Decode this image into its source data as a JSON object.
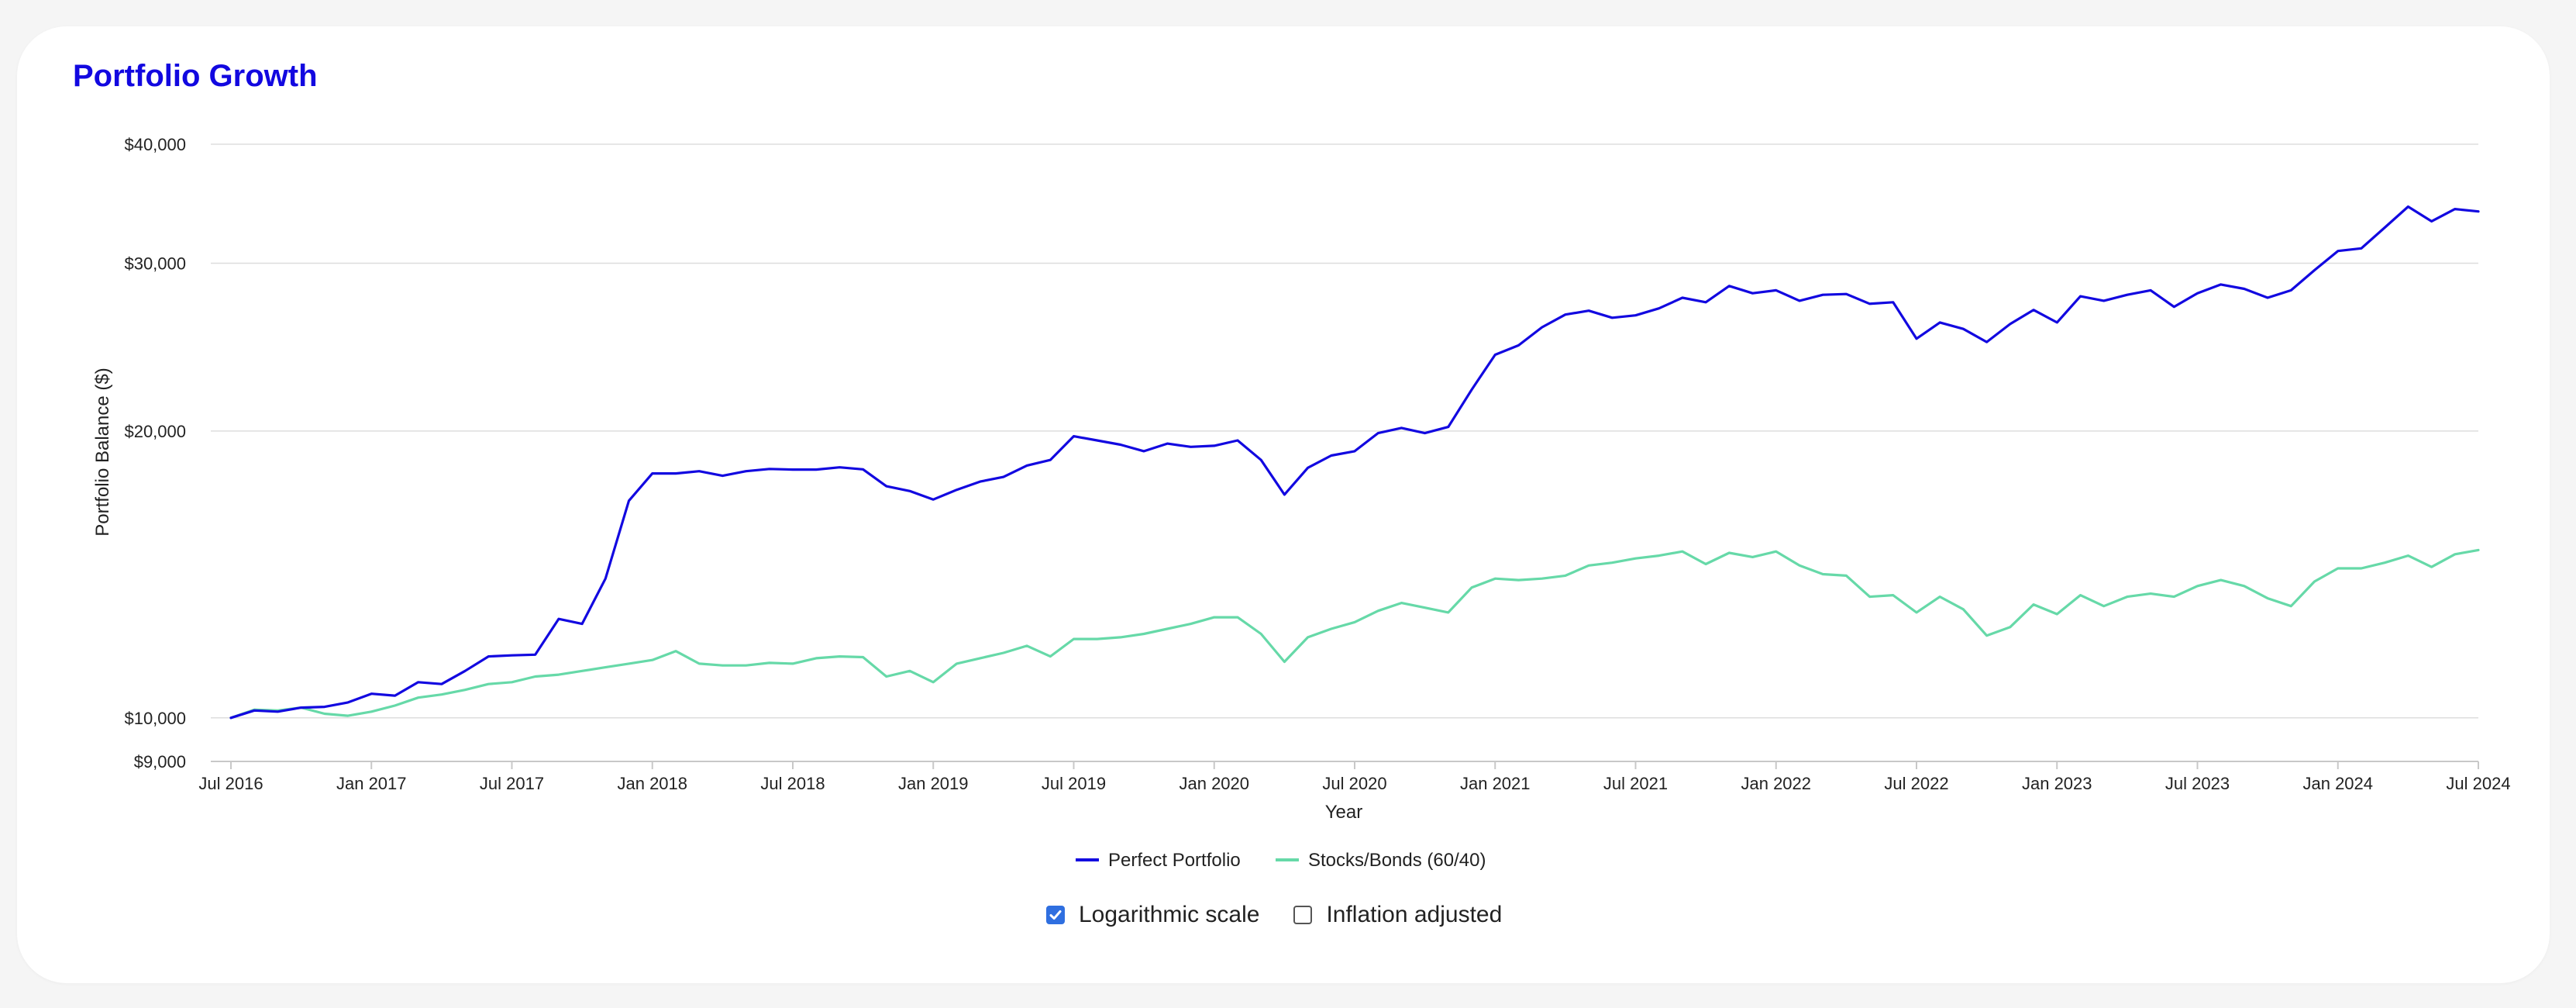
{
  "card": {
    "title": "Portfolio Growth"
  },
  "options": {
    "log_scale": {
      "label": "Logarithmic scale",
      "checked": true
    },
    "inflation": {
      "label": "Inflation adjusted",
      "checked": false
    },
    "check_color": "#2f6fe0"
  },
  "chart_data": {
    "type": "line",
    "xlabel": "Year",
    "ylabel": "Portfolio Balance ($)",
    "yscale": "log",
    "ylim": [
      9000,
      40000
    ],
    "xlim": [
      "2016-07",
      "2024-07"
    ],
    "grid": true,
    "legend": "bottom",
    "yticks": [
      {
        "value": 9000,
        "label": "$9,000"
      },
      {
        "value": 10000,
        "label": "$10,000"
      },
      {
        "value": 20000,
        "label": "$20,000"
      },
      {
        "value": 30000,
        "label": "$30,000"
      },
      {
        "value": 40000,
        "label": "$40,000"
      }
    ],
    "xticks": [
      {
        "date": "2016-07",
        "label": "Jul 2016"
      },
      {
        "date": "2017-01",
        "label": "Jan 2017"
      },
      {
        "date": "2017-07",
        "label": "Jul 2017"
      },
      {
        "date": "2018-01",
        "label": "Jan 2018"
      },
      {
        "date": "2018-07",
        "label": "Jul 2018"
      },
      {
        "date": "2019-01",
        "label": "Jan 2019"
      },
      {
        "date": "2019-07",
        "label": "Jul 2019"
      },
      {
        "date": "2020-01",
        "label": "Jan 2020"
      },
      {
        "date": "2020-07",
        "label": "Jul 2020"
      },
      {
        "date": "2021-01",
        "label": "Jan 2021"
      },
      {
        "date": "2021-07",
        "label": "Jul 2021"
      },
      {
        "date": "2022-01",
        "label": "Jan 2022"
      },
      {
        "date": "2022-07",
        "label": "Jul 2022"
      },
      {
        "date": "2023-01",
        "label": "Jan 2023"
      },
      {
        "date": "2023-07",
        "label": "Jul 2023"
      },
      {
        "date": "2024-01",
        "label": "Jan 2024"
      },
      {
        "date": "2024-07",
        "label": "Jul 2024"
      }
    ],
    "series": [
      {
        "name": "Perfect Portfolio",
        "color": "#1208e0",
        "x": [
          "2016-07",
          "2016-08",
          "2016-09",
          "2016-10",
          "2016-11",
          "2016-12",
          "2017-01",
          "2017-02",
          "2017-03",
          "2017-04",
          "2017-05",
          "2017-06",
          "2017-07",
          "2017-08",
          "2017-09",
          "2017-10",
          "2017-11",
          "2017-12",
          "2018-01",
          "2018-02",
          "2018-03",
          "2018-04",
          "2018-05",
          "2018-06",
          "2018-07",
          "2018-08",
          "2018-09",
          "2018-10",
          "2018-11",
          "2018-12",
          "2019-01",
          "2019-02",
          "2019-03",
          "2019-04",
          "2019-05",
          "2019-06",
          "2019-07",
          "2019-08",
          "2019-09",
          "2019-10",
          "2019-11",
          "2019-12",
          "2020-01",
          "2020-02",
          "2020-03",
          "2020-04",
          "2020-05",
          "2020-06",
          "2020-07",
          "2020-08",
          "2020-09",
          "2020-10",
          "2020-11",
          "2020-12",
          "2021-01",
          "2021-02",
          "2021-03",
          "2021-04",
          "2021-05",
          "2021-06",
          "2021-07",
          "2021-08",
          "2021-09",
          "2021-10",
          "2021-11",
          "2021-12",
          "2022-01",
          "2022-02",
          "2022-03",
          "2022-04",
          "2022-05",
          "2022-06",
          "2022-07",
          "2022-08",
          "2022-09",
          "2022-10",
          "2022-11",
          "2022-12",
          "2023-01",
          "2023-02",
          "2023-03",
          "2023-04",
          "2023-05",
          "2023-06",
          "2023-07",
          "2023-08",
          "2023-09",
          "2023-10",
          "2023-11",
          "2023-12",
          "2024-01",
          "2024-02",
          "2024-03",
          "2024-04",
          "2024-05",
          "2024-06",
          "2024-07"
        ],
        "values": [
          10000,
          10180,
          10150,
          10250,
          10270,
          10380,
          10600,
          10550,
          10900,
          10850,
          11200,
          11600,
          11630,
          11650,
          12700,
          12550,
          14000,
          16900,
          18050,
          18050,
          18150,
          17950,
          18150,
          18250,
          18220,
          18220,
          18320,
          18230,
          17500,
          17300,
          16950,
          17350,
          17700,
          17900,
          18400,
          18650,
          19750,
          19550,
          19350,
          19050,
          19400,
          19250,
          19300,
          19550,
          18650,
          17150,
          18300,
          18850,
          19050,
          19900,
          20150,
          19900,
          20200,
          22100,
          24050,
          24600,
          25700,
          26500,
          26750,
          26300,
          26450,
          26900,
          27600,
          27300,
          28400,
          27900,
          28100,
          27400,
          27800,
          27850,
          27200,
          27300,
          25000,
          26000,
          25600,
          24800,
          25900,
          26800,
          26000,
          27700,
          27400,
          27800,
          28100,
          27000,
          27900,
          28500,
          28200,
          27600,
          28100,
          29500,
          30900,
          31100,
          32700,
          34400,
          33200,
          34200,
          34000
        ]
      },
      {
        "name": "Stocks/Bonds (60/40)",
        "color": "#66d9a8",
        "x": [
          "2016-07",
          "2016-08",
          "2016-09",
          "2016-10",
          "2016-11",
          "2016-12",
          "2017-01",
          "2017-02",
          "2017-03",
          "2017-04",
          "2017-05",
          "2017-06",
          "2017-07",
          "2017-08",
          "2017-09",
          "2017-10",
          "2017-11",
          "2017-12",
          "2018-01",
          "2018-02",
          "2018-03",
          "2018-04",
          "2018-05",
          "2018-06",
          "2018-07",
          "2018-08",
          "2018-09",
          "2018-10",
          "2018-11",
          "2018-12",
          "2019-01",
          "2019-02",
          "2019-03",
          "2019-04",
          "2019-05",
          "2019-06",
          "2019-07",
          "2019-08",
          "2019-09",
          "2019-10",
          "2019-11",
          "2019-12",
          "2020-01",
          "2020-02",
          "2020-03",
          "2020-04",
          "2020-05",
          "2020-06",
          "2020-07",
          "2020-08",
          "2020-09",
          "2020-10",
          "2020-11",
          "2020-12",
          "2021-01",
          "2021-02",
          "2021-03",
          "2021-04",
          "2021-05",
          "2021-06",
          "2021-07",
          "2021-08",
          "2021-09",
          "2021-10",
          "2021-11",
          "2021-12",
          "2022-01",
          "2022-02",
          "2022-03",
          "2022-04",
          "2022-05",
          "2022-06",
          "2022-07",
          "2022-08",
          "2022-09",
          "2022-10",
          "2022-11",
          "2022-12",
          "2023-01",
          "2023-02",
          "2023-03",
          "2023-04",
          "2023-05",
          "2023-06",
          "2023-07",
          "2023-08",
          "2023-09",
          "2023-10",
          "2023-11",
          "2023-12",
          "2024-01",
          "2024-02",
          "2024-03",
          "2024-04",
          "2024-05",
          "2024-06",
          "2024-07"
        ],
        "values": [
          10000,
          10200,
          10180,
          10250,
          10100,
          10050,
          10150,
          10300,
          10500,
          10580,
          10700,
          10850,
          10900,
          11050,
          11100,
          11200,
          11300,
          11400,
          11500,
          11750,
          11400,
          11350,
          11350,
          11420,
          11400,
          11550,
          11600,
          11580,
          11050,
          11200,
          10900,
          11400,
          11550,
          11700,
          11900,
          11600,
          12100,
          12100,
          12150,
          12250,
          12400,
          12550,
          12750,
          12750,
          12250,
          11450,
          12150,
          12400,
          12600,
          12950,
          13200,
          13050,
          12900,
          13700,
          14000,
          13950,
          14000,
          14100,
          14450,
          14550,
          14700,
          14800,
          14950,
          14500,
          14900,
          14750,
          14950,
          14450,
          14150,
          14100,
          13400,
          13450,
          12900,
          13400,
          13000,
          12200,
          12450,
          13150,
          12850,
          13450,
          13100,
          13400,
          13500,
          13400,
          13750,
          13950,
          13750,
          13350,
          13100,
          13900,
          14350,
          14350,
          14550,
          14800,
          14400,
          14850,
          15000
        ]
      }
    ]
  }
}
